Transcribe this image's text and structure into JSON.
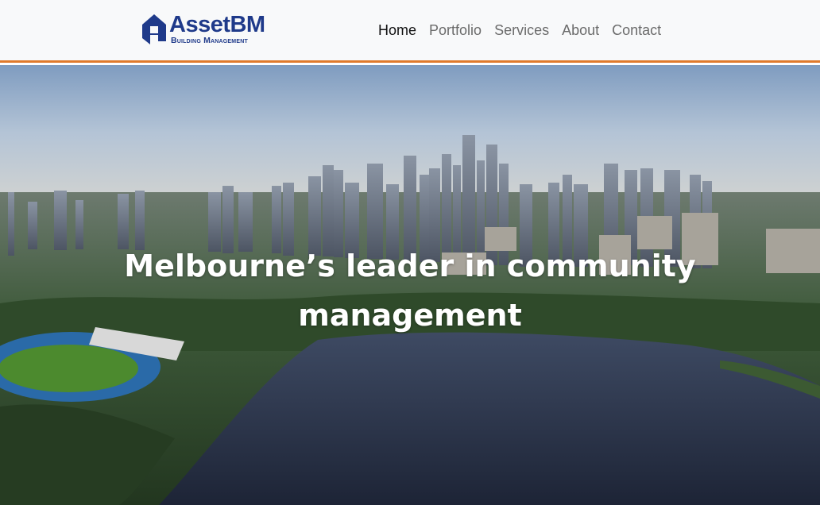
{
  "header": {
    "logo": {
      "name": "AssetBM",
      "tagline": "Building Management"
    },
    "nav": [
      {
        "label": "Home",
        "active": true
      },
      {
        "label": "Portfolio",
        "active": false
      },
      {
        "label": "Services",
        "active": false
      },
      {
        "label": "About",
        "active": false
      },
      {
        "label": "Contact",
        "active": false
      }
    ]
  },
  "hero": {
    "title_line1": "Melbourne’s leader in community",
    "title_line2": "management"
  },
  "colors": {
    "brand_blue": "#1f3a8a",
    "accent_orange": "#e07a2c",
    "nav_inactive": "#6b6b6b",
    "nav_active": "#111111"
  }
}
